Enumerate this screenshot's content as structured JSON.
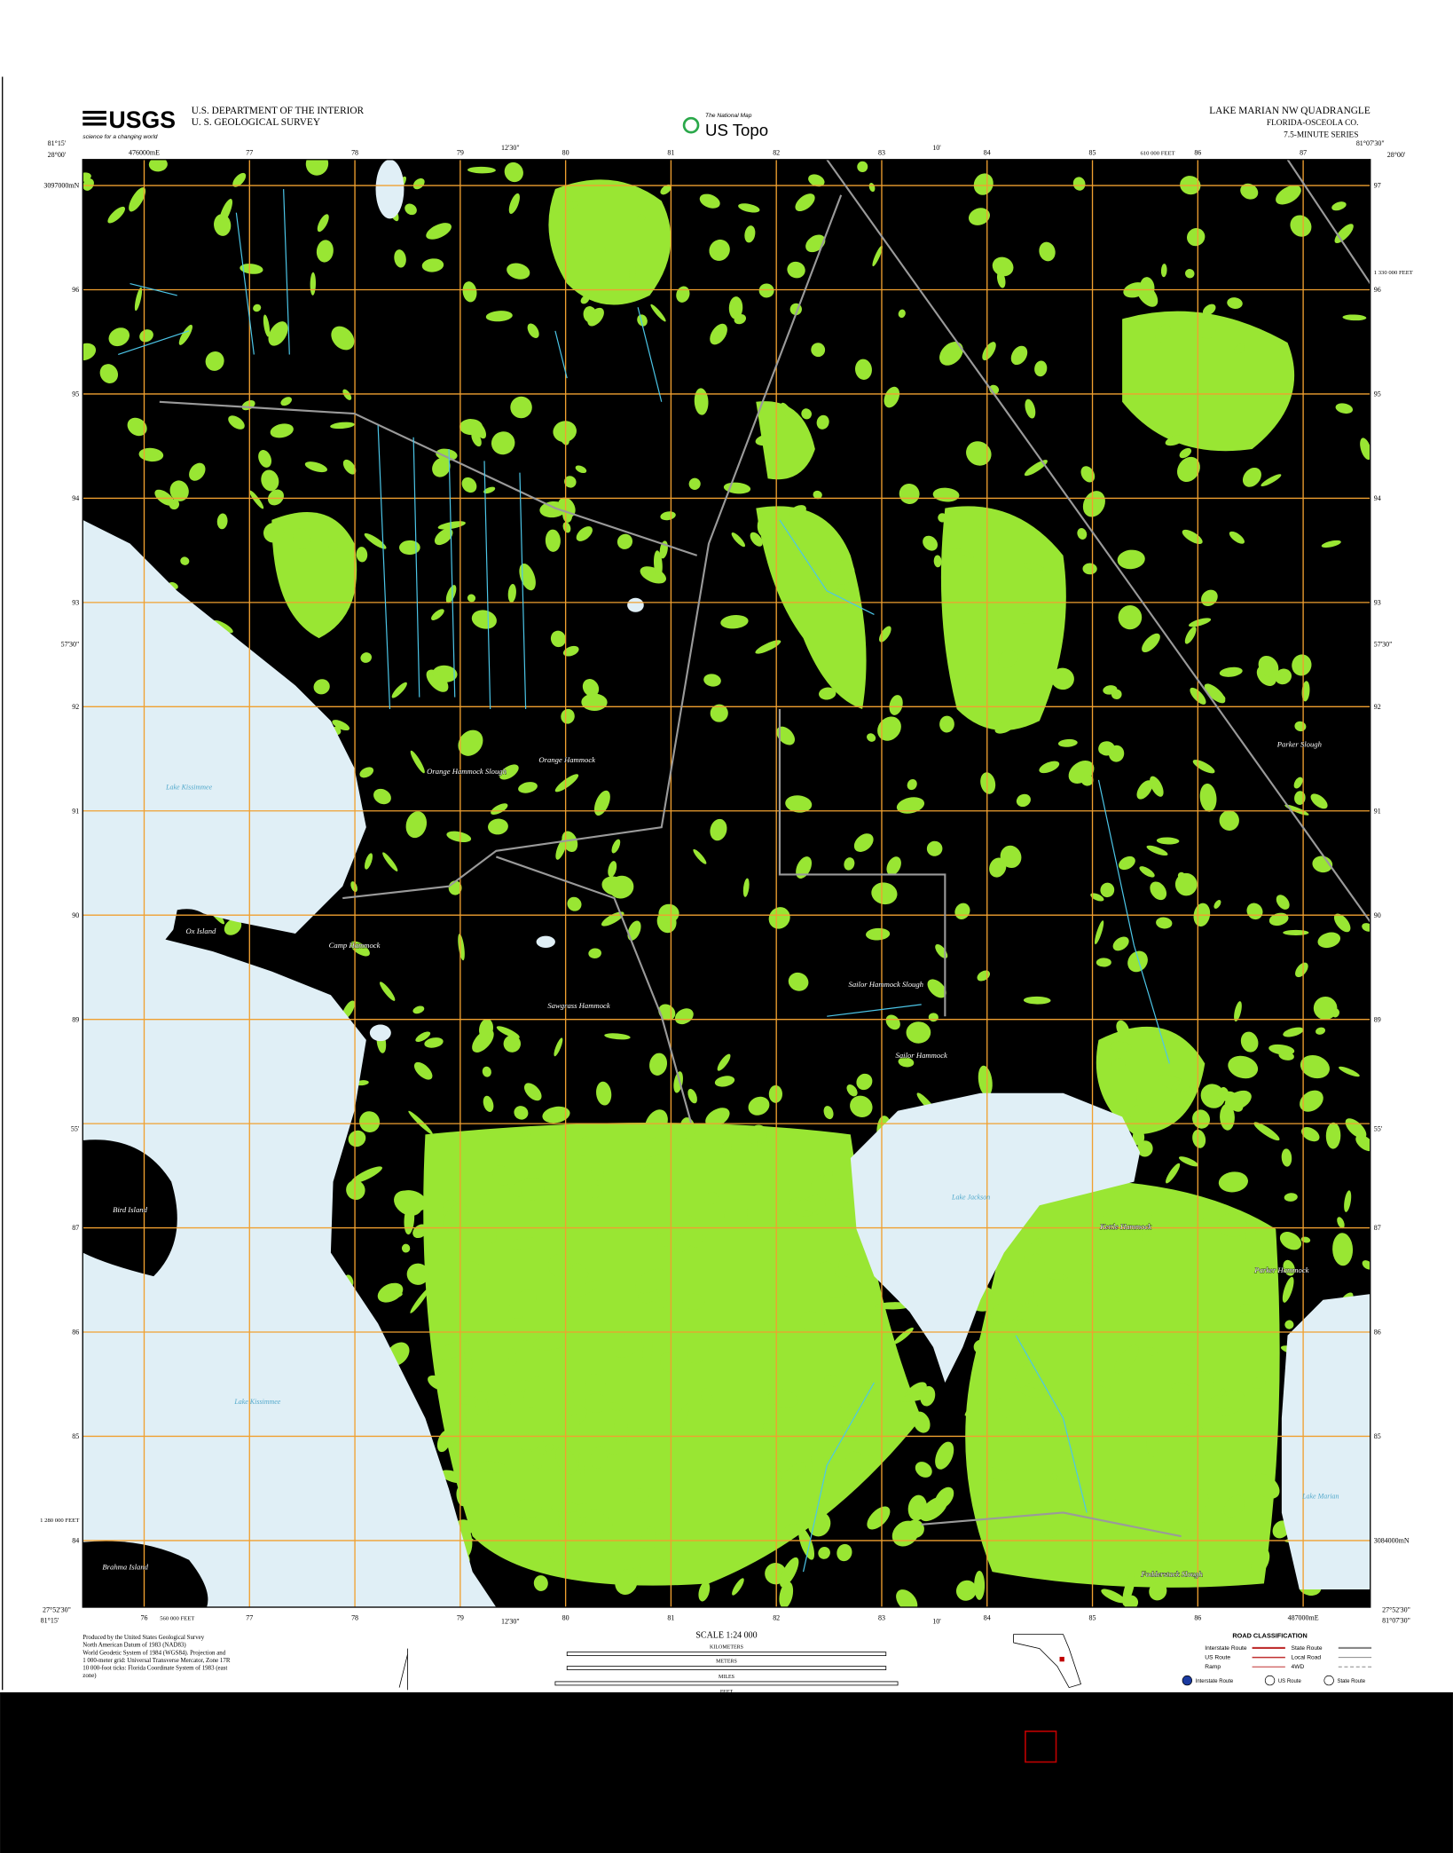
{
  "header": {
    "logo": "USGS",
    "logo_tagline": "science for a changing world",
    "agency_line1": "U.S. DEPARTMENT OF THE INTERIOR",
    "agency_line2": "U. S. GEOLOGICAL SURVEY",
    "product_small": "The National Map",
    "product": "US Topo",
    "title": "LAKE MARIAN NW QUADRANGLE",
    "state_county": "FLORIDA-OSCEOLA CO.",
    "series": "7.5-MINUTE SERIES"
  },
  "map": {
    "grid_top": [
      "476000mE",
      "77",
      "78",
      "79",
      "80",
      "81",
      "82",
      "83",
      "84",
      "85",
      "86",
      "87"
    ],
    "grid_bottom": [
      "76",
      "77",
      "78",
      "79",
      "80",
      "81",
      "82",
      "83",
      "84",
      "85",
      "86",
      "487000mE"
    ],
    "grid_left": [
      "3097000mN",
      "96",
      "95",
      "94",
      "93",
      "92",
      "91",
      "90",
      "89",
      "87",
      "86",
      "85",
      "84"
    ],
    "grid_right": [
      "97",
      "96",
      "95",
      "94",
      "93",
      "92",
      "91",
      "90",
      "89",
      "87",
      "86",
      "85",
      "3084000mN"
    ],
    "feet_ticks": [
      "610 000 FEET",
      "1 330 000 FEET",
      "560 000 FEET",
      "1 280 000 FEET"
    ],
    "geo_ticks": [
      "81°15'",
      "28°00'",
      "12'30\"",
      "10'",
      "81°07'30\"",
      "28°00'",
      "57'30\"",
      "57'30\"",
      "55'",
      "55'",
      "81°15'",
      "27°52'30\"",
      "12'30\"",
      "10'",
      "81°07'30\"",
      "27°52'30\""
    ],
    "places": [
      "Lake Kissimmee",
      "Orange Hammock Slough",
      "Orange Hammock",
      "Ox Island",
      "Camp Hammock",
      "Sawgrass Hammock",
      "Sailor Hammock Slough",
      "Sailor Hammock",
      "Lake Jackson",
      "Kettle Hammock",
      "Parker Hammock",
      "Parker Slough",
      "Bird Island",
      "Lake Kissimmee",
      "Brahma Island",
      "Lake Marian",
      "Fodderstack Slough"
    ]
  },
  "footer": {
    "credits": [
      "Produced by the United States Geological Survey",
      "North American Datum of 1983 (NAD83)",
      "World Geodetic System of 1984 (WGS84). Projection and",
      "1 000-meter grid: Universal Transverse Mercator, Zone 17R",
      "10 000-foot ticks: Florida Coordinate System of 1983 (east",
      "zone)"
    ],
    "scale": "SCALE 1:24 000",
    "scale_units": [
      "KILOMETERS",
      "METERS",
      "MILES",
      "FEET"
    ],
    "road_title": "ROAD CLASSIFICATION",
    "road_types": [
      "Interstate Route",
      "US Route",
      "Ramp",
      "State Route",
      "Local Road",
      "4WD"
    ],
    "shields": [
      "Interstate Route",
      "US Route",
      "State Route"
    ]
  }
}
